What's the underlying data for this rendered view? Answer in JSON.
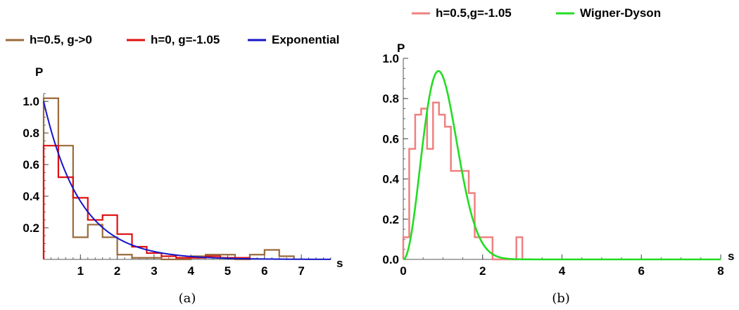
{
  "chart_data": [
    {
      "type": "line",
      "caption": "(a)",
      "xlabel": "s",
      "ylabel": "P",
      "xlim": [
        0,
        7.8
      ],
      "ylim": [
        0,
        1.05
      ],
      "x_ticks": [
        "1",
        "2",
        "3",
        "4",
        "5",
        "6",
        "7"
      ],
      "y_ticks": [
        "0.2",
        "0.4",
        "0.6",
        "0.8",
        "1.0"
      ],
      "legend_position": "top",
      "series": [
        {
          "name": "h=0.5, g->0",
          "kind": "histogram",
          "color": "#9a6a3a",
          "bin_edges": [
            0,
            0.4,
            0.8,
            1.2,
            1.6,
            2.0,
            2.4,
            2.8,
            3.2,
            3.6,
            4.0,
            4.4,
            4.8,
            5.2,
            5.6,
            6.0,
            6.4,
            6.8
          ],
          "values": [
            1.02,
            0.72,
            0.14,
            0.22,
            0.14,
            0.03,
            0.01,
            0.01,
            0,
            0,
            0.02,
            0.03,
            0.03,
            0,
            0.03,
            0.06,
            0.02
          ]
        },
        {
          "name": "h=0, g=-1.05",
          "kind": "histogram",
          "color": "#e01010",
          "bin_edges": [
            0,
            0.4,
            0.8,
            1.2,
            1.6,
            2.0,
            2.4,
            2.8,
            3.2,
            3.6,
            4.0,
            4.4,
            4.8,
            5.2,
            5.6
          ],
          "values": [
            0.72,
            0.52,
            0.39,
            0.25,
            0.28,
            0.16,
            0.08,
            0.04,
            0.02,
            0.01,
            0.01,
            0.02,
            0.01,
            0.01
          ]
        },
        {
          "name": "Exponential",
          "kind": "curve",
          "color": "#1515c8",
          "formula": "exp(-s)"
        }
      ]
    },
    {
      "type": "line",
      "caption": "(b)",
      "xlabel": "s",
      "ylabel": "P",
      "xlim": [
        0,
        8
      ],
      "ylim": [
        0,
        1.0
      ],
      "x_ticks": [
        "0",
        "2",
        "4",
        "6",
        "8"
      ],
      "y_ticks": [
        "0.0",
        "0.2",
        "0.4",
        "0.6",
        "0.8",
        "1.0"
      ],
      "legend_position": "top",
      "series": [
        {
          "name": "h=0.5,g=-1.05",
          "kind": "histogram",
          "color": "#f08080",
          "bin_edges": [
            0,
            0.15,
            0.3,
            0.45,
            0.6,
            0.75,
            0.9,
            1.05,
            1.2,
            1.35,
            1.5,
            1.65,
            1.8,
            1.95,
            2.1,
            2.25,
            2.4,
            2.55,
            2.7,
            2.85,
            3.0
          ],
          "values": [
            0.11,
            0.55,
            0.72,
            0.75,
            0.55,
            0.78,
            0.72,
            0.66,
            0.44,
            0.44,
            0.44,
            0.33,
            0.11,
            0.11,
            0.11,
            0,
            0,
            0,
            0,
            0.11
          ]
        },
        {
          "name": "Wigner-Dyson",
          "kind": "curve",
          "color": "#22dd22",
          "formula": "(32/pi^2) s^2 exp(-4 s^2 / pi)"
        }
      ]
    }
  ]
}
